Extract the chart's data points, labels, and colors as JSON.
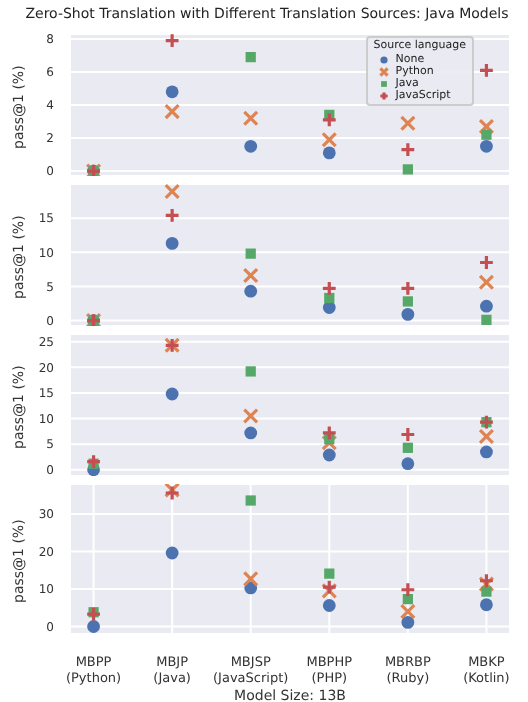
{
  "chart_data": [
    {
      "type": "scatter",
      "title": "Zero-Shot Translation with Different Translation Sources: Java Models",
      "ylabel": "pass@1 (%)",
      "ylim": [
        -0.3,
        8.3
      ],
      "yticks": [
        0,
        2,
        4,
        6,
        8
      ],
      "grid": true,
      "tick_labels": "y",
      "legend": "top right",
      "legend_title": "Source language",
      "series": [
        {
          "name": "None",
          "color": "#4c72b0",
          "marker": "circle",
          "values": [
            0,
            4.8,
            1.5,
            1.1,
            null,
            1.5
          ]
        },
        {
          "name": "Python",
          "color": "#dd8452",
          "marker": "cross",
          "values": [
            0,
            3.6,
            3.2,
            1.9,
            2.9,
            2.7
          ]
        },
        {
          "name": "Java",
          "color": "#55a868",
          "marker": "square",
          "values": [
            0,
            null,
            6.9,
            3.4,
            0.1,
            2.2
          ]
        },
        {
          "name": "JavaScript",
          "color": "#c44e52",
          "marker": "cross",
          "values": [
            0,
            7.9,
            null,
            3.1,
            1.3,
            6.1
          ]
        }
      ]
    },
    {
      "type": "scatter",
      "ylabel": "pass@1 (%)",
      "ylim": [
        -0.8,
        20
      ],
      "yticks": [
        0,
        5,
        10,
        15
      ],
      "grid": true,
      "tick_labels": "y",
      "series": [
        {
          "color": "#4c72b0",
          "marker": "circle",
          "values": [
            0,
            11.3,
            4.3,
            1.9,
            0.9,
            2.1
          ]
        },
        {
          "color": "#dd8452",
          "marker": "cross",
          "values": [
            0,
            18.9,
            6.6,
            null,
            null,
            5.6
          ]
        },
        {
          "color": "#55a868",
          "marker": "square",
          "values": [
            0,
            null,
            9.8,
            3.3,
            2.8,
            0.1
          ]
        },
        {
          "color": "#c44e52",
          "marker": "cross",
          "values": [
            0,
            15.4,
            null,
            4.7,
            4.7,
            8.5
          ]
        }
      ]
    },
    {
      "type": "scatter",
      "ylabel": "pass@1 (%)",
      "ylim": [
        -1.2,
        26.5
      ],
      "yticks": [
        0,
        5,
        10,
        15,
        20,
        25
      ],
      "grid": true,
      "tick_labels": "y",
      "series": [
        {
          "color": "#4c72b0",
          "marker": "circle",
          "values": [
            0,
            14.8,
            7.2,
            2.9,
            1.2,
            3.5
          ]
        },
        {
          "color": "#dd8452",
          "marker": "cross",
          "values": [
            null,
            24.3,
            10.5,
            5.3,
            null,
            6.5
          ]
        },
        {
          "color": "#55a868",
          "marker": "square",
          "values": [
            1.2,
            null,
            19.2,
            6.0,
            4.3,
            9.3
          ]
        },
        {
          "color": "#c44e52",
          "marker": "cross",
          "values": [
            1.6,
            24.3,
            null,
            7.2,
            6.9,
            9.3
          ]
        }
      ]
    },
    {
      "type": "scatter",
      "ylabel": "pass@1 (%)",
      "xlabel": "Model Size: 13B",
      "categories": [
        "MBPP (Python)",
        "MBJP (Java)",
        "MBJSP (JavaScript)",
        "MBPHP (PHP)",
        "MBRBP (Ruby)",
        "MBKP (Kotlin)"
      ],
      "ylim": [
        -2,
        38
      ],
      "yticks": [
        0,
        10,
        20,
        30
      ],
      "grid": true,
      "series": [
        {
          "color": "#4c72b0",
          "marker": "circle",
          "values": [
            0,
            19.6,
            10.3,
            5.6,
            1.1,
            5.8
          ]
        },
        {
          "color": "#dd8452",
          "marker": "cross",
          "values": [
            null,
            36.4,
            12.7,
            9.5,
            4.0,
            11.3
          ]
        },
        {
          "color": "#55a868",
          "marker": "square",
          "values": [
            3.8,
            null,
            33.6,
            14.1,
            7.3,
            9.3
          ]
        },
        {
          "color": "#c44e52",
          "marker": "cross",
          "values": [
            3.3,
            35.6,
            null,
            10.5,
            9.8,
            12.2
          ]
        }
      ]
    }
  ]
}
